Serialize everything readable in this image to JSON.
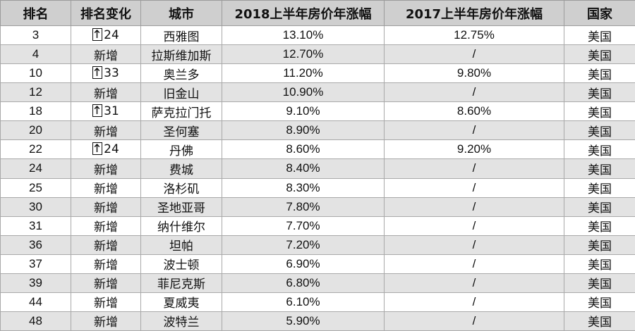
{
  "table": {
    "headers": {
      "rank": "排名",
      "change": "排名变化",
      "city": "城市",
      "y2018": "2018上半年房价年涨幅",
      "y2017": "2017上半年房价年涨幅",
      "country": "国家"
    },
    "rows": [
      {
        "rank": "3",
        "change_icon": "up-arrow-icon",
        "change": "24",
        "city": "西雅图",
        "y2018": "13.10%",
        "y2017": "12.75%",
        "country": "美国"
      },
      {
        "rank": "4",
        "change_icon": "",
        "change": "新增",
        "city": "拉斯维加斯",
        "y2018": "12.70%",
        "y2017": "/",
        "country": "美国"
      },
      {
        "rank": "10",
        "change_icon": "up-arrow-icon",
        "change": "33",
        "city": "奥兰多",
        "y2018": "11.20%",
        "y2017": "9.80%",
        "country": "美国"
      },
      {
        "rank": "12",
        "change_icon": "",
        "change": "新增",
        "city": "旧金山",
        "y2018": "10.90%",
        "y2017": "/",
        "country": "美国"
      },
      {
        "rank": "18",
        "change_icon": "up-arrow-icon",
        "change": "31",
        "city": "萨克拉门托",
        "y2018": "9.10%",
        "y2017": "8.60%",
        "country": "美国"
      },
      {
        "rank": "20",
        "change_icon": "",
        "change": "新增",
        "city": "圣何塞",
        "y2018": "8.90%",
        "y2017": "/",
        "country": "美国"
      },
      {
        "rank": "22",
        "change_icon": "up-arrow-icon",
        "change": "24",
        "city": "丹佛",
        "y2018": "8.60%",
        "y2017": "9.20%",
        "country": "美国"
      },
      {
        "rank": "24",
        "change_icon": "",
        "change": "新增",
        "city": "费城",
        "y2018": "8.40%",
        "y2017": "/",
        "country": "美国"
      },
      {
        "rank": "25",
        "change_icon": "",
        "change": "新增",
        "city": "洛杉矶",
        "y2018": "8.30%",
        "y2017": "/",
        "country": "美国"
      },
      {
        "rank": "30",
        "change_icon": "",
        "change": "新增",
        "city": "圣地亚哥",
        "y2018": "7.80%",
        "y2017": "/",
        "country": "美国"
      },
      {
        "rank": "31",
        "change_icon": "",
        "change": "新增",
        "city": "纳什维尔",
        "y2018": "7.70%",
        "y2017": "/",
        "country": "美国"
      },
      {
        "rank": "36",
        "change_icon": "",
        "change": "新增",
        "city": "坦帕",
        "y2018": "7.20%",
        "y2017": "/",
        "country": "美国"
      },
      {
        "rank": "37",
        "change_icon": "",
        "change": "新增",
        "city": "波士顿",
        "y2018": "6.90%",
        "y2017": "/",
        "country": "美国"
      },
      {
        "rank": "39",
        "change_icon": "",
        "change": "新增",
        "city": "菲尼克斯",
        "y2018": "6.80%",
        "y2017": "/",
        "country": "美国"
      },
      {
        "rank": "44",
        "change_icon": "",
        "change": "新增",
        "city": "夏威夷",
        "y2018": "6.10%",
        "y2017": "/",
        "country": "美国"
      },
      {
        "rank": "48",
        "change_icon": "",
        "change": "新增",
        "city": "波特兰",
        "y2018": "5.90%",
        "y2017": "/",
        "country": "美国"
      }
    ]
  },
  "colors": {
    "header_bg": "#cfcfcf",
    "row_alt_bg": "#e3e3e3",
    "row_bg": "#ffffff",
    "grid": "#a9a9a9"
  }
}
